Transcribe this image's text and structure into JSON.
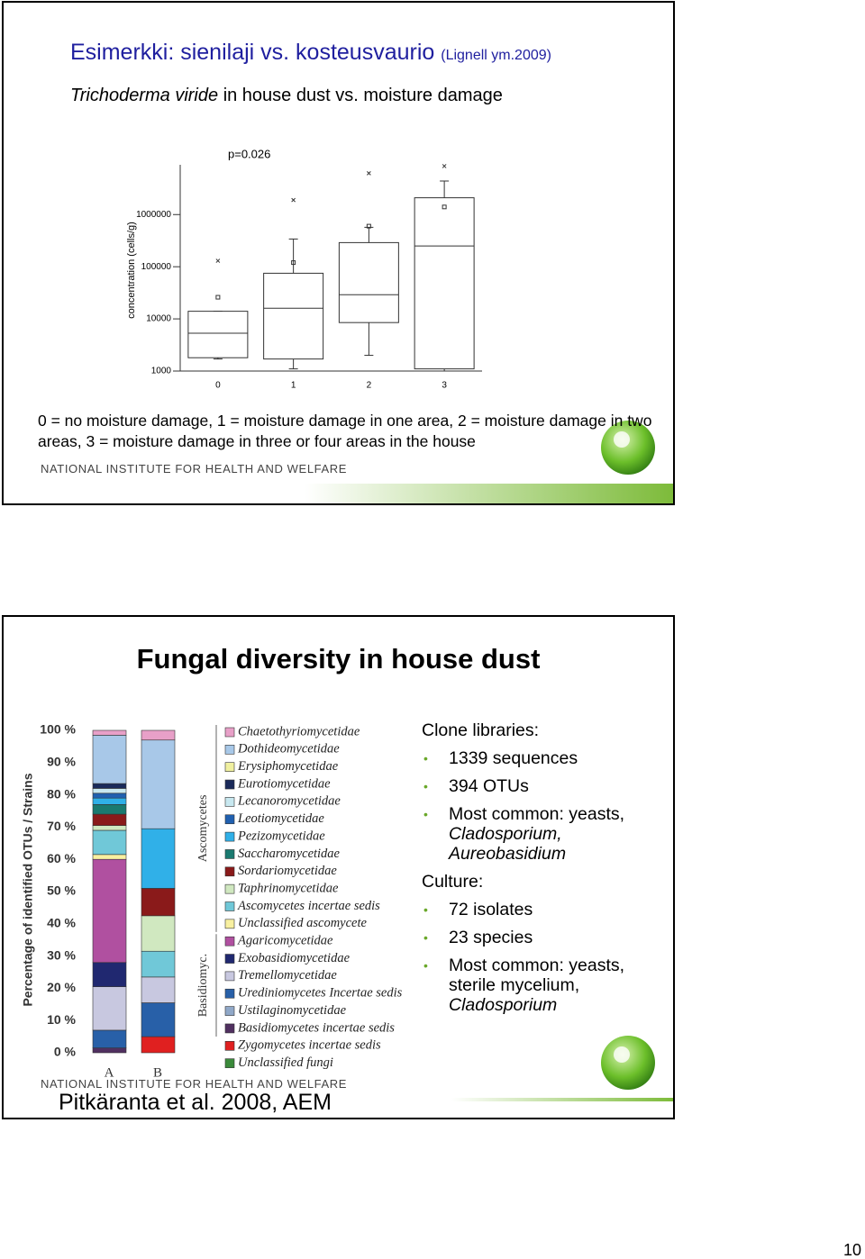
{
  "slides": [
    {
      "title": "Esimerkki: sienilaji vs. kosteusvaurio",
      "citation": "(Lignell ym.2009)",
      "subtitle": {
        "italic": "Trichoderma viride",
        "text": "in house dust vs. moisture damage"
      },
      "chart_data": {
        "type": "box",
        "annotation": "p=0.026",
        "y_label": "concentration (cells/g)",
        "categories": [
          "0",
          "1",
          "2",
          "3"
        ],
        "log_scale": true,
        "ylim": [
          1000,
          9000000
        ],
        "yticks": [
          1000,
          10000,
          100000,
          1000000
        ],
        "min": [
          1700,
          1100,
          2000,
          1000
        ],
        "q1": [
          1800,
          1700,
          8500,
          1100
        ],
        "median": [
          5300,
          16000,
          29000,
          250000
        ],
        "q3": [
          14000,
          75000,
          290000,
          2100000
        ],
        "max": [
          14000,
          340000,
          570000,
          4400000
        ],
        "mean": [
          26000,
          120000,
          600000,
          1400000
        ],
        "outlier": [
          130000,
          1900000,
          6200000,
          8500000
        ]
      },
      "caption": "0 = no moisture damage, 1 = moisture damage in one area, 2 = moisture damage in two areas, 3 = moisture damage in three or four areas in the house",
      "footer": "NATIONAL INSTITUTE FOR HEALTH AND WELFARE"
    },
    {
      "title": "Fungal diversity in house dust",
      "chart_data": {
        "type": "stacked_bar",
        "y_label": "Percentage of identified OTUs / Strains",
        "categories": [
          "A",
          "B"
        ],
        "ylim": [
          0,
          100
        ],
        "yticks": [
          {
            "value": 0,
            "label": "0 %"
          },
          {
            "value": 10,
            "label": "10 %"
          },
          {
            "value": 20,
            "label": "20 %"
          },
          {
            "value": 30,
            "label": "30 %"
          },
          {
            "value": 40,
            "label": "40 %"
          },
          {
            "value": 50,
            "label": "50 %"
          },
          {
            "value": 60,
            "label": "60 %"
          },
          {
            "value": 70,
            "label": "70 %"
          },
          {
            "value": 80,
            "label": "80 %"
          },
          {
            "value": 90,
            "label": "90 %"
          },
          {
            "value": 100,
            "label": "100 %"
          }
        ],
        "legend_groups": [
          "Ascomycetes",
          "Basidiomyc."
        ],
        "series": [
          {
            "name": "Chaetothyriomycetidae",
            "color": "#e8a0c8",
            "values": [
              1.5,
              3
            ]
          },
          {
            "name": "Dothideomycetidae",
            "color": "#a8c8e8",
            "values": [
              15,
              27.5
            ]
          },
          {
            "name": "Erysiphomycetidae",
            "color": "#f0f0a0",
            "values": [
              0,
              0
            ]
          },
          {
            "name": "Eurotiomycetidae",
            "color": "#1a2a5a",
            "values": [
              1.5,
              0
            ]
          },
          {
            "name": "Lecanoromycetidae",
            "color": "#c8e8f0",
            "values": [
              1.5,
              0
            ]
          },
          {
            "name": "Leotiomycetidae",
            "color": "#2060b0",
            "values": [
              1.5,
              0
            ]
          },
          {
            "name": "Pezizomycetidae",
            "color": "#30b0e8",
            "values": [
              2,
              18.5
            ]
          },
          {
            "name": "Saccharomycetidae",
            "color": "#1a7a70",
            "values": [
              3,
              0
            ]
          },
          {
            "name": "Sordariomycetidae",
            "color": "#8a1a1a",
            "values": [
              3.5,
              8.5
            ]
          },
          {
            "name": "Taphrinomycetidae",
            "color": "#d0e8c0",
            "values": [
              1.5,
              11
            ]
          },
          {
            "name": "Ascomycetes incertae sedis",
            "color": "#70c8d8",
            "values": [
              7.5,
              8
            ]
          },
          {
            "name": "Unclassified ascomycete",
            "color": "#f8f0a0",
            "values": [
              1.5,
              0
            ]
          },
          {
            "name": "Agaricomycetidae",
            "color": "#b050a0",
            "values": [
              32,
              0
            ]
          },
          {
            "name": "Exobasidiomycetidae",
            "color": "#202870",
            "values": [
              7.5,
              0
            ]
          },
          {
            "name": "Tremellomycetidae",
            "color": "#c8c8e0",
            "values": [
              13.5,
              8
            ]
          },
          {
            "name": "Urediniomycetes Incertae sedis",
            "color": "#2860a8",
            "values": [
              5.5,
              10.5
            ]
          },
          {
            "name": "Ustilaginomycetidae",
            "color": "#90a8c8",
            "values": [
              0,
              0
            ]
          },
          {
            "name": "Basidiomycetes incertae sedis",
            "color": "#503060",
            "values": [
              1.5,
              0
            ]
          },
          {
            "name": "Zygomycetes incertae sedis",
            "color": "#e02020",
            "values": [
              0,
              5
            ]
          },
          {
            "name": "Unclassified fungi",
            "color": "#3a8a3a",
            "values": [
              0,
              0
            ]
          }
        ]
      },
      "info": [
        {
          "heading": "Clone libraries:",
          "items": [
            {
              "text": "1339 sequences"
            },
            {
              "text": "394 OTUs"
            },
            {
              "text": "Most common: yeasts,",
              "italic": "Cladosporium, Aureobasidium"
            }
          ]
        },
        {
          "heading": "Culture:",
          "items": [
            {
              "text": "72 isolates"
            },
            {
              "text": "23 species"
            },
            {
              "text": "Most common: yeasts, sterile mycelium,",
              "italic": "Cladosporium"
            }
          ]
        }
      ],
      "citation": "Pitkäranta et al. 2008, AEM",
      "footer": "NATIONAL INSTITUTE FOR HEALTH AND WELFARE"
    }
  ],
  "page_number": "10"
}
